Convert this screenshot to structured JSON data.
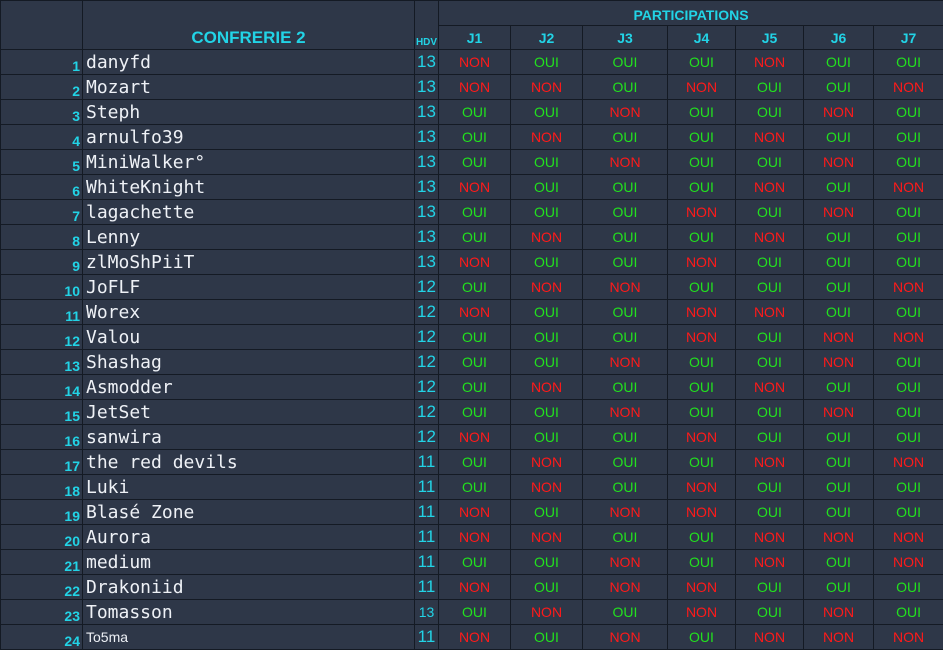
{
  "title": "CONFRERIE 2",
  "hdv_label": "HDV",
  "participations_label": "PARTICIPATIONS",
  "days": [
    "J1",
    "J2",
    "J3",
    "J4",
    "J5",
    "J6",
    "J7"
  ],
  "yes_label": "OUI",
  "no_label": "NON",
  "colors": {
    "header_text": "#22d3e6",
    "yes": "#22e11e",
    "no": "#ff1a1a",
    "background": "#2e3748"
  },
  "players": [
    {
      "rank": "1",
      "name": "danyfd",
      "hdv": "13",
      "answers": [
        "NON",
        "OUI",
        "OUI",
        "OUI",
        "NON",
        "OUI",
        "OUI"
      ]
    },
    {
      "rank": "2",
      "name": "Mozart",
      "hdv": "13",
      "answers": [
        "NON",
        "NON",
        "OUI",
        "NON",
        "OUI",
        "OUI",
        "NON"
      ]
    },
    {
      "rank": "3",
      "name": "Steph",
      "hdv": "13",
      "answers": [
        "OUI",
        "OUI",
        "NON",
        "OUI",
        "OUI",
        "NON",
        "OUI"
      ]
    },
    {
      "rank": "4",
      "name": "arnulfo39",
      "hdv": "13",
      "answers": [
        "OUI",
        "NON",
        "OUI",
        "OUI",
        "NON",
        "OUI",
        "OUI"
      ]
    },
    {
      "rank": "5",
      "name": "MiniWalker°",
      "hdv": "13",
      "answers": [
        "OUI",
        "OUI",
        "NON",
        "OUI",
        "OUI",
        "NON",
        "OUI"
      ]
    },
    {
      "rank": "6",
      "name": "WhiteKnight",
      "hdv": "13",
      "answers": [
        "NON",
        "OUI",
        "OUI",
        "OUI",
        "NON",
        "OUI",
        "NON"
      ]
    },
    {
      "rank": "7",
      "name": "lagachette",
      "hdv": "13",
      "answers": [
        "OUI",
        "OUI",
        "OUI",
        "NON",
        "OUI",
        "NON",
        "OUI"
      ]
    },
    {
      "rank": "8",
      "name": "Lenny",
      "hdv": "13",
      "answers": [
        "OUI",
        "NON",
        "OUI",
        "OUI",
        "NON",
        "OUI",
        "OUI"
      ]
    },
    {
      "rank": "9",
      "name": "zlMoShPiiT",
      "hdv": "13",
      "answers": [
        "NON",
        "OUI",
        "OUI",
        "NON",
        "OUI",
        "OUI",
        "OUI"
      ]
    },
    {
      "rank": "10",
      "name": "JoFLF",
      "hdv": "12",
      "answers": [
        "OUI",
        "NON",
        "NON",
        "OUI",
        "OUI",
        "OUI",
        "NON"
      ]
    },
    {
      "rank": "11",
      "name": "Worex",
      "hdv": "12",
      "answers": [
        "NON",
        "OUI",
        "OUI",
        "NON",
        "NON",
        "OUI",
        "OUI"
      ]
    },
    {
      "rank": "12",
      "name": "Valou",
      "hdv": "12",
      "answers": [
        "OUI",
        "OUI",
        "OUI",
        "NON",
        "OUI",
        "NON",
        "NON"
      ]
    },
    {
      "rank": "13",
      "name": "Shashag",
      "hdv": "12",
      "answers": [
        "OUI",
        "OUI",
        "NON",
        "OUI",
        "OUI",
        "NON",
        "OUI"
      ]
    },
    {
      "rank": "14",
      "name": "Asmodder",
      "hdv": "12",
      "answers": [
        "OUI",
        "NON",
        "OUI",
        "OUI",
        "NON",
        "OUI",
        "OUI"
      ]
    },
    {
      "rank": "15",
      "name": "JetSet",
      "hdv": "12",
      "answers": [
        "OUI",
        "OUI",
        "NON",
        "OUI",
        "OUI",
        "NON",
        "OUI"
      ]
    },
    {
      "rank": "16",
      "name": "sanwira",
      "hdv": "12",
      "answers": [
        "NON",
        "OUI",
        "OUI",
        "NON",
        "OUI",
        "OUI",
        "OUI"
      ]
    },
    {
      "rank": "17",
      "name": "the red devils",
      "hdv": "11",
      "answers": [
        "OUI",
        "NON",
        "OUI",
        "OUI",
        "NON",
        "OUI",
        "NON"
      ]
    },
    {
      "rank": "18",
      "name": "Luki",
      "hdv": "11",
      "answers": [
        "OUI",
        "NON",
        "OUI",
        "NON",
        "OUI",
        "OUI",
        "OUI"
      ]
    },
    {
      "rank": "19",
      "name": "Blasé Zone",
      "hdv": "11",
      "answers": [
        "NON",
        "OUI",
        "NON",
        "NON",
        "OUI",
        "OUI",
        "OUI"
      ]
    },
    {
      "rank": "20",
      "name": "Aurora",
      "hdv": "11",
      "answers": [
        "NON",
        "NON",
        "OUI",
        "OUI",
        "NON",
        "NON",
        "NON"
      ]
    },
    {
      "rank": "21",
      "name": "medium",
      "hdv": "11",
      "answers": [
        "OUI",
        "OUI",
        "NON",
        "OUI",
        "NON",
        "OUI",
        "NON"
      ]
    },
    {
      "rank": "22",
      "name": "Drakoniid",
      "hdv": "11",
      "answers": [
        "NON",
        "OUI",
        "NON",
        "NON",
        "OUI",
        "OUI",
        "OUI"
      ]
    },
    {
      "rank": "23",
      "name": "Tomasson",
      "hdv": "13",
      "answers": [
        "OUI",
        "NON",
        "OUI",
        "NON",
        "OUI",
        "NON",
        "OUI"
      ]
    },
    {
      "rank": "24",
      "name": "To5ma",
      "hdv": "11",
      "answers": [
        "NON",
        "OUI",
        "NON",
        "OUI",
        "NON",
        "NON",
        "NON"
      ]
    }
  ]
}
